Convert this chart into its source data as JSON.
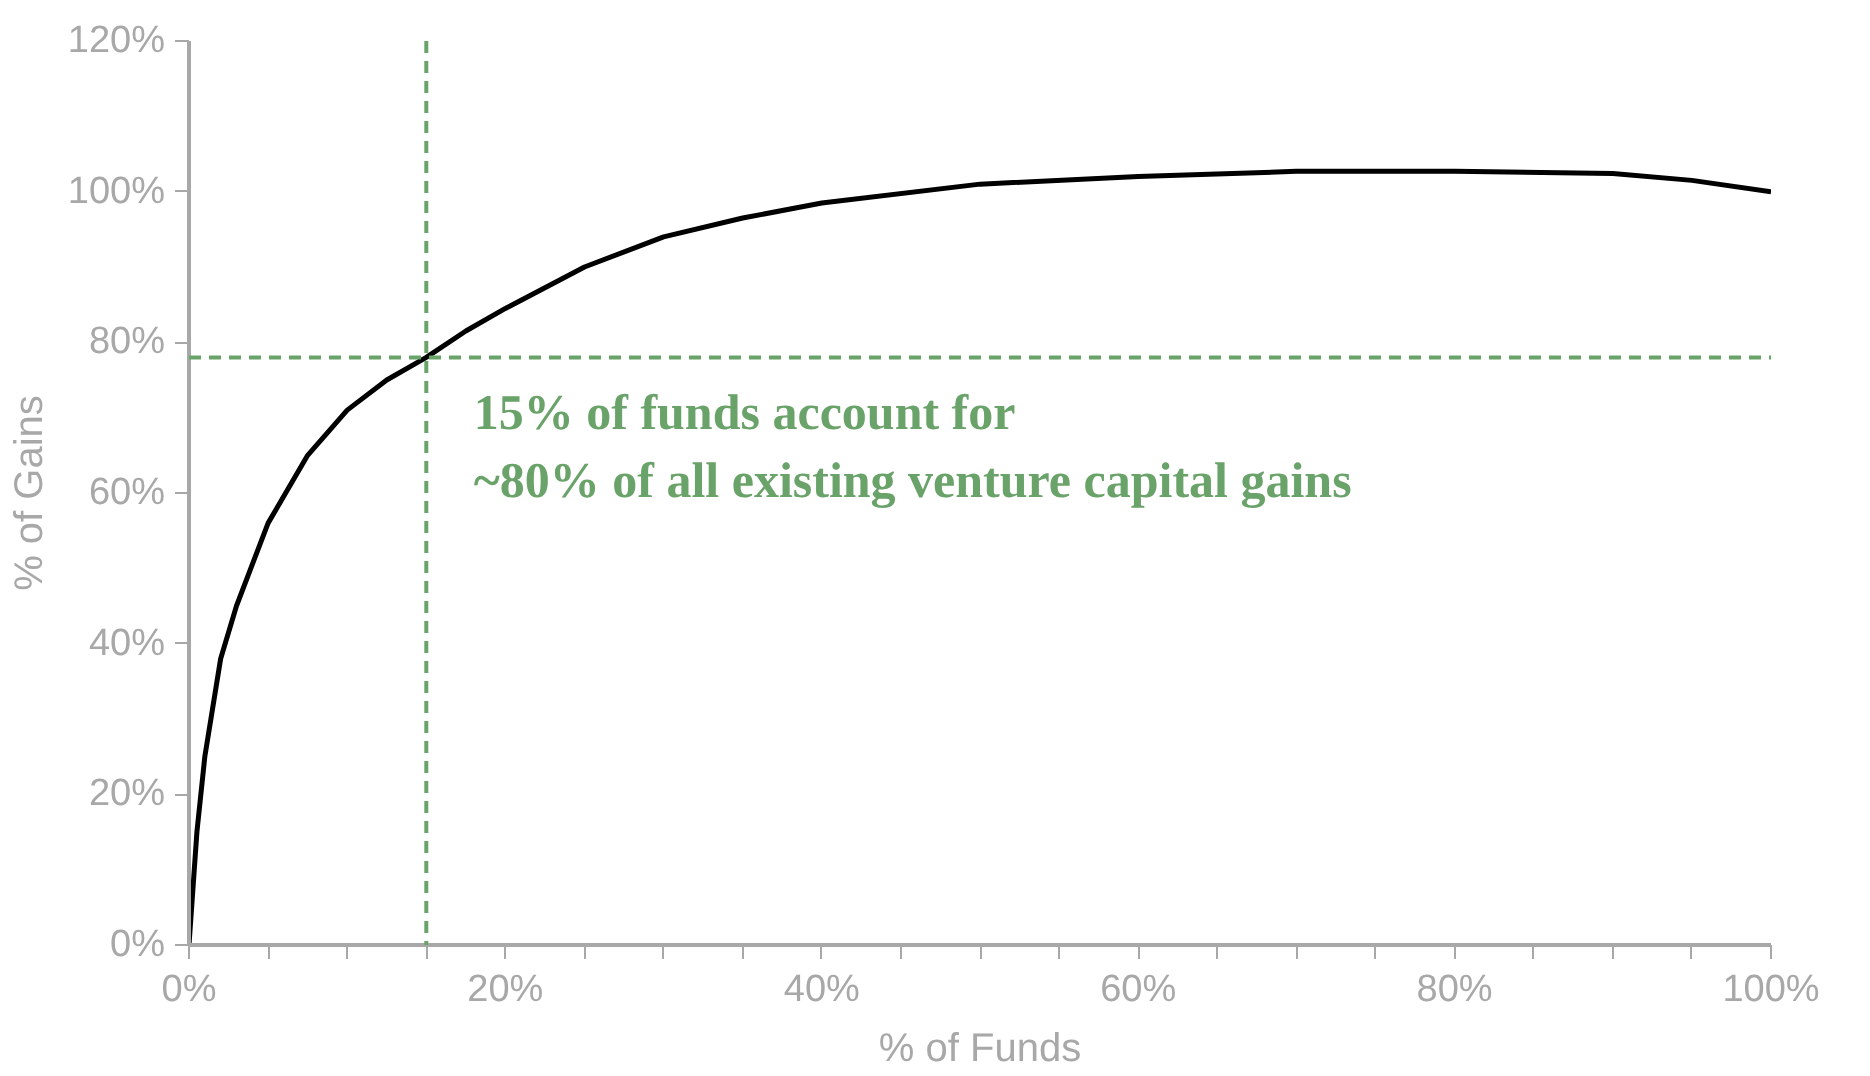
{
  "chart_data": {
    "type": "line",
    "xlabel": "% of Funds",
    "ylabel": "% of Gains",
    "x": [
      0,
      0.5,
      1,
      2,
      3,
      5,
      7.5,
      10,
      12.5,
      15,
      17.5,
      20,
      25,
      30,
      35,
      40,
      50,
      60,
      70,
      80,
      90,
      95,
      100
    ],
    "series": [
      {
        "color": "#000000",
        "values": [
          0,
          15,
          25,
          38,
          45,
          56,
          65,
          71,
          75,
          78,
          81.5,
          84.5,
          90,
          94,
          96.5,
          98.5,
          101,
          102,
          102.7,
          102.7,
          102.4,
          101.5,
          100
        ]
      }
    ],
    "xlim": [
      0,
      100
    ],
    "ylim": [
      0,
      120
    ],
    "xticks": [
      {
        "value": 0,
        "label": "0%"
      },
      {
        "value": 5,
        "label": null
      },
      {
        "value": 10,
        "label": null
      },
      {
        "value": 15,
        "label": null
      },
      {
        "value": 20,
        "label": "20%"
      },
      {
        "value": 25,
        "label": null
      },
      {
        "value": 30,
        "label": null
      },
      {
        "value": 35,
        "label": null
      },
      {
        "value": 40,
        "label": "40%"
      },
      {
        "value": 45,
        "label": null
      },
      {
        "value": 50,
        "label": null
      },
      {
        "value": 55,
        "label": null
      },
      {
        "value": 60,
        "label": "60%"
      },
      {
        "value": 65,
        "label": null
      },
      {
        "value": 70,
        "label": null
      },
      {
        "value": 75,
        "label": null
      },
      {
        "value": 80,
        "label": "80%"
      },
      {
        "value": 85,
        "label": null
      },
      {
        "value": 90,
        "label": null
      },
      {
        "value": 95,
        "label": null
      },
      {
        "value": 100,
        "label": "100%"
      }
    ],
    "yticks": [
      {
        "value": 0,
        "label": "0%"
      },
      {
        "value": 20,
        "label": "20%"
      },
      {
        "value": 40,
        "label": "40%"
      },
      {
        "value": 60,
        "label": "60%"
      },
      {
        "value": 80,
        "label": "80%"
      },
      {
        "value": 100,
        "label": "100%"
      },
      {
        "value": 120,
        "label": "120%"
      }
    ],
    "ref_lines": [
      {
        "axis": "x",
        "value": 15,
        "color": "#6aa36a",
        "line_style": "dashed"
      },
      {
        "axis": "y",
        "value": 78,
        "color": "#6aa36a",
        "line_style": "dashed"
      }
    ],
    "annotations": [
      "15% of funds account for\n~80% of all existing venture capital gains"
    ],
    "line_style": "solid"
  }
}
